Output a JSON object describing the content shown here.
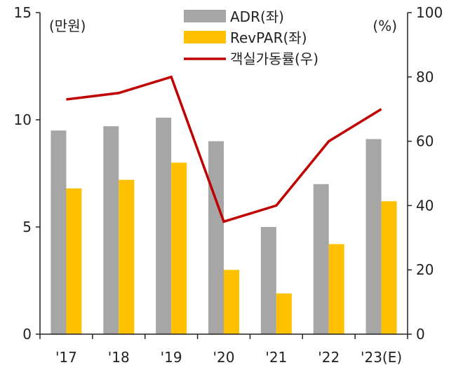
{
  "chart_data": {
    "type": "bar",
    "categories": [
      "'17",
      "'18",
      "'19",
      "'20",
      "'21",
      "'22",
      "'23(E)"
    ],
    "series": [
      {
        "name": "ADR(좌)",
        "kind": "bar",
        "axis": "left",
        "color": "#a6a6a6",
        "values": [
          9.5,
          9.7,
          10.1,
          9.0,
          5.0,
          7.0,
          9.1
        ]
      },
      {
        "name": "RevPAR(좌)",
        "kind": "bar",
        "axis": "left",
        "color": "#ffc000",
        "values": [
          6.8,
          7.2,
          8.0,
          3.0,
          1.9,
          4.2,
          6.2
        ]
      },
      {
        "name": "객실가동률(우)",
        "kind": "line",
        "axis": "right",
        "color": "#c00000",
        "values": [
          73,
          75,
          80,
          35,
          40,
          60,
          70
        ]
      }
    ],
    "y_left": {
      "unit_label": "(만원)",
      "lim": [
        0,
        15
      ],
      "ticks": [
        0,
        5,
        10,
        15
      ]
    },
    "y_right": {
      "unit_label": "(%)",
      "lim": [
        0,
        100
      ],
      "ticks": [
        0,
        20,
        40,
        60,
        80,
        100
      ]
    },
    "legend": {
      "placement": "top-center"
    },
    "grid": false
  }
}
